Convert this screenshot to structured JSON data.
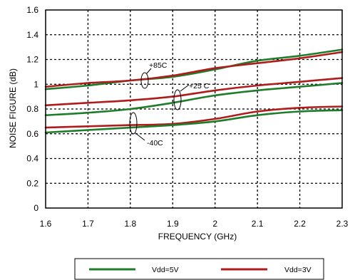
{
  "chart_data": {
    "type": "line",
    "xlabel": "FREQUENCY (GHz)",
    "ylabel": "NOISE FIGURE (dB)",
    "xlim": [
      1.6,
      2.3
    ],
    "ylim": [
      0,
      1.6
    ],
    "x_ticks": [
      "1.6",
      "1.7",
      "1.8",
      "1.9",
      "2",
      "2.1",
      "2.2",
      "2.3"
    ],
    "y_ticks": [
      "0",
      "0.2",
      "0.4",
      "0.6",
      "0.8",
      "1",
      "1.2",
      "1.4",
      "1.6"
    ],
    "grid": true,
    "grid_style": "dashed",
    "legend_position": "bottom",
    "colors": {
      "vdd5": "#1e7d2a",
      "vdd3": "#b01c1c"
    },
    "annotations": [
      "+85C",
      "+25 C",
      "-40C"
    ],
    "series": [
      {
        "name": "Vdd=5V",
        "color": "#1e7d2a",
        "group": "+85C",
        "x": [
          1.6,
          1.7,
          1.8,
          1.9,
          2.0,
          2.1,
          2.2,
          2.3
        ],
        "y": [
          0.96,
          0.99,
          1.03,
          1.06,
          1.12,
          1.19,
          1.23,
          1.28
        ]
      },
      {
        "name": "Vdd=3V",
        "color": "#b01c1c",
        "group": "+85C",
        "x": [
          1.6,
          1.7,
          1.8,
          1.9,
          2.0,
          2.1,
          2.2,
          2.3
        ],
        "y": [
          0.98,
          1.01,
          1.03,
          1.07,
          1.13,
          1.17,
          1.21,
          1.26
        ]
      },
      {
        "name": "Vdd=3V",
        "color": "#b01c1c",
        "group": "+25 C",
        "x": [
          1.6,
          1.7,
          1.8,
          1.9,
          2.0,
          2.1,
          2.2,
          2.3
        ],
        "y": [
          0.83,
          0.85,
          0.87,
          0.9,
          0.95,
          0.99,
          1.02,
          1.05
        ]
      },
      {
        "name": "Vdd=5V",
        "color": "#1e7d2a",
        "group": "+25 C",
        "x": [
          1.6,
          1.7,
          1.8,
          1.9,
          2.0,
          2.1,
          2.2,
          2.3
        ],
        "y": [
          0.75,
          0.77,
          0.8,
          0.85,
          0.91,
          0.95,
          0.98,
          1.01
        ]
      },
      {
        "name": "Vdd=3V",
        "color": "#b01c1c",
        "group": "-40C",
        "x": [
          1.6,
          1.7,
          1.8,
          1.9,
          2.0,
          2.1,
          2.2,
          2.3
        ],
        "y": [
          0.65,
          0.66,
          0.67,
          0.68,
          0.72,
          0.78,
          0.81,
          0.82
        ]
      },
      {
        "name": "Vdd=5V",
        "color": "#1e7d2a",
        "group": "-40C",
        "x": [
          1.6,
          1.7,
          1.8,
          1.9,
          2.0,
          2.1,
          2.2,
          2.3
        ],
        "y": [
          0.61,
          0.63,
          0.65,
          0.67,
          0.7,
          0.75,
          0.78,
          0.79
        ]
      }
    ],
    "legend": [
      {
        "label": "Vdd=5V",
        "color": "#1e7d2a"
      },
      {
        "label": "Vdd=3V",
        "color": "#b01c1c"
      }
    ]
  }
}
